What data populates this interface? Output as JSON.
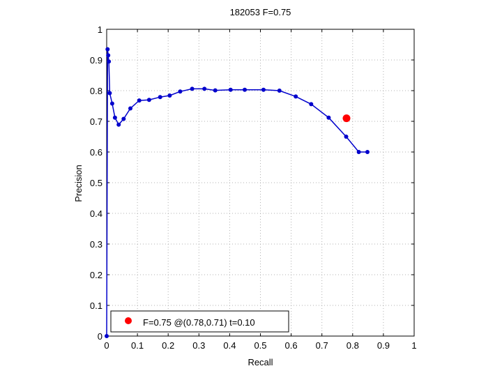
{
  "chart_data": {
    "type": "line",
    "title": "182053 F=0.75",
    "xlabel": "Recall",
    "ylabel": "Precision",
    "xlim": [
      0,
      1
    ],
    "ylim": [
      0,
      1
    ],
    "xticks": [
      "0",
      "0.1",
      "0.2",
      "0.3",
      "0.4",
      "0.5",
      "0.6",
      "0.7",
      "0.8",
      "0.9",
      "1"
    ],
    "yticks": [
      "0",
      "0.1",
      "0.2",
      "0.3",
      "0.4",
      "0.5",
      "0.6",
      "0.7",
      "0.8",
      "0.9",
      "1"
    ],
    "grid": true,
    "legend_position": "bottom-left",
    "series": [
      {
        "color": "#0000cc",
        "x": [
          0.0,
          0.003,
          0.005,
          0.007,
          0.01,
          0.018,
          0.027,
          0.039,
          0.055,
          0.077,
          0.106,
          0.138,
          0.174,
          0.205,
          0.239,
          0.278,
          0.318,
          0.353,
          0.403,
          0.449,
          0.51,
          0.562,
          0.615,
          0.665,
          0.722,
          0.779,
          0.82,
          0.848
        ],
        "y": [
          0.0,
          0.935,
          0.915,
          0.895,
          0.792,
          0.758,
          0.712,
          0.689,
          0.708,
          0.742,
          0.768,
          0.77,
          0.779,
          0.784,
          0.797,
          0.806,
          0.806,
          0.801,
          0.803,
          0.803,
          0.803,
          0.8,
          0.781,
          0.756,
          0.712,
          0.65,
          0.6,
          0.6
        ]
      }
    ],
    "optimum_point": {
      "x": 0.78,
      "y": 0.71,
      "color": "#ff0000"
    },
    "legend": {
      "label": "F=0.75 @(0.78,0.71) t=0.10",
      "marker_color": "#ff0000"
    }
  }
}
